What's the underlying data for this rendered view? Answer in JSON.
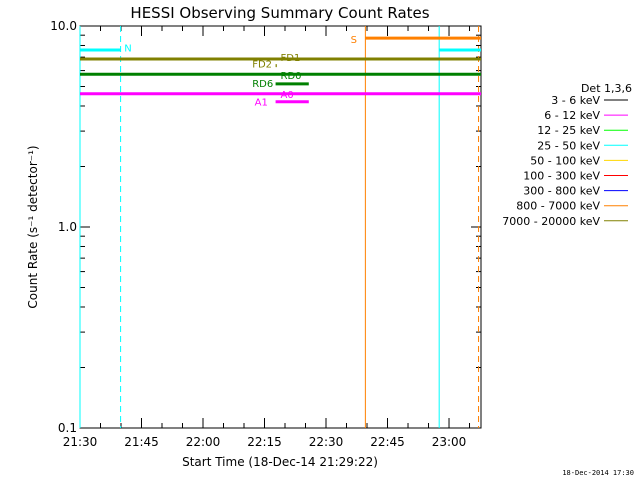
{
  "chart_data": {
    "type": "line",
    "title": "HESSI Observing Summary Count Rates",
    "xlabel": "Start Time (18-Dec-14 21:29:22)",
    "ylabel": "Count Rate (s⁻¹ detector⁻¹)",
    "yscale": "log",
    "ylim": [
      0.1,
      10.0
    ],
    "xlim_minutes": [
      21.5,
      23.13
    ],
    "y_ticks": [
      {
        "value": 10.0,
        "label": "10.0"
      },
      {
        "value": 1.0,
        "label": "1.0"
      },
      {
        "value": 0.1,
        "label": "0.1"
      }
    ],
    "x_ticks": [
      {
        "value": 21.5,
        "label": "21:30"
      },
      {
        "value": 21.75,
        "label": "21:45"
      },
      {
        "value": 22.0,
        "label": "22:00"
      },
      {
        "value": 22.25,
        "label": "22:15"
      },
      {
        "value": 22.5,
        "label": "22:30"
      },
      {
        "value": 22.75,
        "label": "22:45"
      },
      {
        "value": 23.0,
        "label": "23:00"
      }
    ],
    "legend_title": "Det 1,3,6",
    "legend": [
      {
        "label": "3 - 6 keV",
        "color": "#000000"
      },
      {
        "label": "6 - 12 keV",
        "color": "#ff00ff"
      },
      {
        "label": "12 - 25 keV",
        "color": "#00ff00"
      },
      {
        "label": "25 - 50 keV",
        "color": "#00ffff"
      },
      {
        "label": "50 - 100 keV",
        "color": "#ffd700"
      },
      {
        "label": "100 - 300 keV",
        "color": "#ff0000"
      },
      {
        "label": "300 - 800 keV",
        "color": "#0000ff"
      },
      {
        "label": "800 - 7000 keV",
        "color": "#ff8000"
      },
      {
        "label": "7000 - 20000 keV",
        "color": "#808000"
      }
    ],
    "series": [
      {
        "name": "6-12 keV",
        "color": "#ff00ff",
        "segments": [
          {
            "x0": 21.5,
            "x1": 23.13,
            "y": 4.6
          }
        ]
      },
      {
        "name": "12-25 keV",
        "color": "#008000",
        "segments": [
          {
            "x0": 21.5,
            "x1": 23.13,
            "y": 5.75
          }
        ]
      },
      {
        "name": "7000-20000 keV",
        "color": "#808000",
        "segments": [
          {
            "x0": 21.5,
            "x1": 23.13,
            "y": 6.85
          }
        ]
      },
      {
        "name": "N flag",
        "color": "#00ffff",
        "segments": [
          {
            "x0": 21.5,
            "x1": 21.665,
            "y": 7.6
          },
          {
            "x0": 22.96,
            "x1": 23.13,
            "y": 7.6
          }
        ]
      },
      {
        "name": "S flag",
        "color": "#ff8000",
        "segments": [
          {
            "x0": 22.66,
            "x1": 23.13,
            "y": 8.7
          }
        ]
      },
      {
        "name": "FD2 flag",
        "color": "#808000",
        "segments": [
          {
            "x0": 22.295,
            "x1": 22.3,
            "y": 6.35
          }
        ]
      },
      {
        "name": "RD6 flag",
        "color": "#008000",
        "segments": [
          {
            "x0": 22.295,
            "x1": 22.43,
            "y": 5.15
          }
        ]
      },
      {
        "name": "A1 flag",
        "color": "#ff00ff",
        "segments": [
          {
            "x0": 22.295,
            "x1": 22.43,
            "y": 4.2
          }
        ]
      }
    ],
    "vertical_lines": [
      {
        "x": 21.5,
        "color": "#00ffff",
        "style": "solid"
      },
      {
        "x": 21.665,
        "color": "#00ffff",
        "style": "dashed"
      },
      {
        "x": 22.66,
        "color": "#ff8000",
        "style": "solid"
      },
      {
        "x": 22.96,
        "color": "#00ffff",
        "style": "solid"
      },
      {
        "x": 23.12,
        "color": "#ff8000",
        "style": "dashed"
      }
    ],
    "annotations": [
      {
        "text": "N",
        "color": "#00ffff",
        "x": 21.68,
        "y": 7.8
      },
      {
        "text": "S",
        "color": "#ff8000",
        "x": 22.6,
        "y": 8.6
      },
      {
        "text": "FD1",
        "color": "#808000",
        "x": 22.315,
        "y": 7.0
      },
      {
        "text": "FD2",
        "color": "#808000",
        "x": 22.2,
        "y": 6.5
      },
      {
        "text": "RD0",
        "color": "#008000",
        "x": 22.315,
        "y": 5.7
      },
      {
        "text": "RD6",
        "color": "#008000",
        "x": 22.2,
        "y": 5.2
      },
      {
        "text": "A0",
        "color": "#ff00ff",
        "x": 22.315,
        "y": 4.6
      },
      {
        "text": "A1",
        "color": "#ff00ff",
        "x": 22.21,
        "y": 4.2
      }
    ]
  },
  "footer": {
    "timestamp": "18-Dec-2014 17:30"
  }
}
